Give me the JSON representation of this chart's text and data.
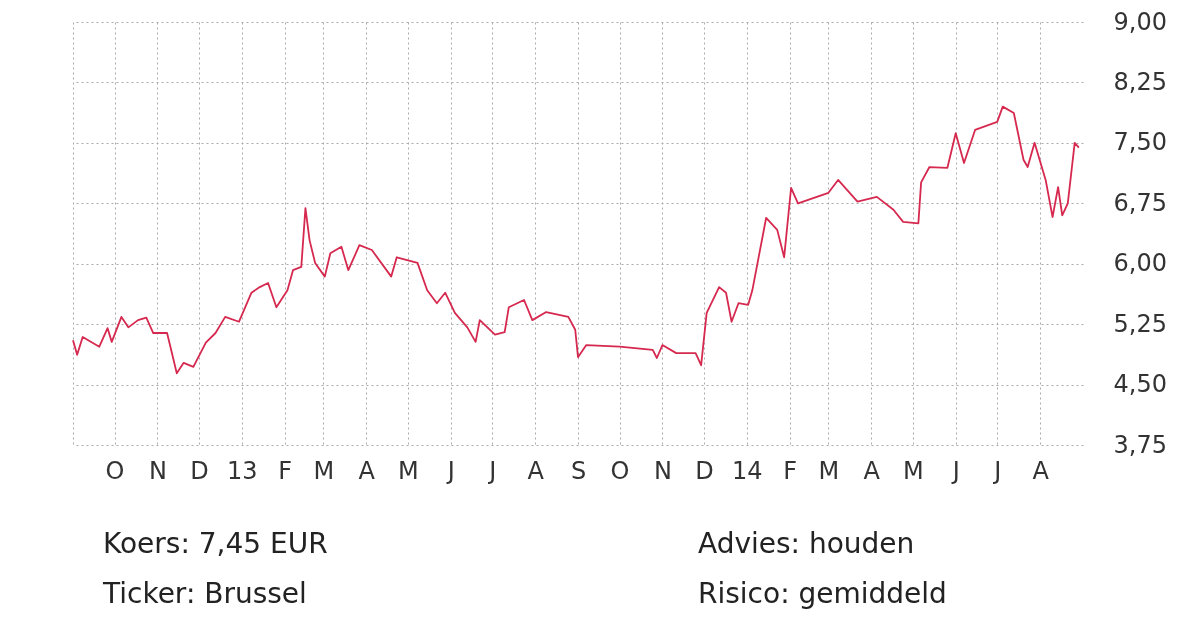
{
  "chart_data": {
    "type": "line",
    "x": [
      "2012-09-01",
      "2012-09-04",
      "2012-09-08",
      "2012-09-20",
      "2012-09-26",
      "2012-09-29",
      "2012-10-06",
      "2012-10-11",
      "2012-10-18",
      "2012-10-24",
      "2012-10-29",
      "2012-11-08",
      "2012-11-15",
      "2012-11-20",
      "2012-11-27",
      "2012-12-06",
      "2012-12-13",
      "2012-12-20",
      "2012-12-30",
      "2013-01-08",
      "2013-01-14",
      "2013-01-20",
      "2013-01-26",
      "2013-02-03",
      "2013-02-07",
      "2013-02-13",
      "2013-02-16",
      "2013-02-19",
      "2013-02-23",
      "2013-03-02",
      "2013-03-06",
      "2013-03-14",
      "2013-03-19",
      "2013-03-27",
      "2013-04-05",
      "2013-04-19",
      "2013-04-23",
      "2013-05-08",
      "2013-05-15",
      "2013-05-22",
      "2013-05-28",
      "2013-06-04",
      "2013-06-13",
      "2013-06-19",
      "2013-06-22",
      "2013-07-03",
      "2013-07-10",
      "2013-07-13",
      "2013-07-24",
      "2013-07-30",
      "2013-08-09",
      "2013-08-25",
      "2013-08-30",
      "2013-09-01",
      "2013-09-07",
      "2013-10-01",
      "2013-10-25",
      "2013-10-28",
      "2013-11-01",
      "2013-11-11",
      "2013-11-25",
      "2013-11-29",
      "2013-12-03",
      "2013-12-12",
      "2013-12-17",
      "2013-12-21",
      "2013-12-26",
      "2014-01-02",
      "2014-01-05",
      "2014-01-15",
      "2014-01-23",
      "2014-01-28",
      "2014-02-02",
      "2014-02-07",
      "2014-03-01",
      "2014-03-08",
      "2014-03-22",
      "2014-04-05",
      "2014-04-17",
      "2014-04-24",
      "2014-05-05",
      "2014-05-07",
      "2014-05-13",
      "2014-05-26",
      "2014-06-01",
      "2014-06-07",
      "2014-06-15",
      "2014-07-01",
      "2014-07-05",
      "2014-07-13",
      "2014-07-20",
      "2014-07-23",
      "2014-07-28",
      "2014-08-05",
      "2014-08-10",
      "2014-08-14",
      "2014-08-17",
      "2014-08-21",
      "2014-08-26",
      "2014-08-29"
    ],
    "series": [
      {
        "color": "#d6294f",
        "values": [
          5.05,
          4.87,
          5.09,
          4.97,
          5.2,
          5.03,
          5.34,
          5.21,
          5.3,
          5.33,
          5.14,
          5.14,
          4.64,
          4.77,
          4.72,
          5.02,
          5.14,
          5.34,
          5.28,
          5.64,
          5.71,
          5.76,
          5.46,
          5.67,
          5.92,
          5.96,
          6.69,
          6.29,
          6.01,
          5.84,
          6.13,
          6.21,
          5.92,
          6.23,
          6.17,
          5.84,
          6.08,
          6.01,
          5.67,
          5.51,
          5.64,
          5.39,
          5.21,
          5.03,
          5.3,
          5.12,
          5.15,
          5.46,
          5.55,
          5.3,
          5.4,
          5.34,
          5.18,
          4.84,
          4.99,
          4.97,
          4.93,
          4.83,
          4.99,
          4.89,
          4.89,
          4.74,
          5.39,
          5.71,
          5.64,
          5.28,
          5.51,
          5.49,
          5.67,
          6.57,
          6.42,
          6.08,
          6.94,
          6.75,
          6.88,
          7.04,
          6.77,
          6.83,
          6.67,
          6.52,
          6.5,
          7.01,
          7.2,
          7.19,
          7.62,
          7.25,
          7.66,
          7.76,
          7.95,
          7.87,
          7.29,
          7.2,
          7.5,
          7.04,
          6.58,
          6.95,
          6.6,
          6.75,
          7.5,
          7.44
        ]
      }
    ],
    "xlim": [
      "2012-09-01",
      "2014-09-01"
    ],
    "xticks": [
      {
        "value": "2012-09-01",
        "label": null
      },
      {
        "value": "2012-10-01",
        "label": "O"
      },
      {
        "value": "2012-11-01",
        "label": "N"
      },
      {
        "value": "2012-12-01",
        "label": "D"
      },
      {
        "value": "2013-01-01",
        "label": "13"
      },
      {
        "value": "2013-02-01",
        "label": "F"
      },
      {
        "value": "2013-03-01",
        "label": "M"
      },
      {
        "value": "2013-04-01",
        "label": "A"
      },
      {
        "value": "2013-05-01",
        "label": "M"
      },
      {
        "value": "2013-06-01",
        "label": "J"
      },
      {
        "value": "2013-07-01",
        "label": "J"
      },
      {
        "value": "2013-08-01",
        "label": "A"
      },
      {
        "value": "2013-09-01",
        "label": "S"
      },
      {
        "value": "2013-10-01",
        "label": "O"
      },
      {
        "value": "2013-11-01",
        "label": "N"
      },
      {
        "value": "2013-12-01",
        "label": "D"
      },
      {
        "value": "2014-01-01",
        "label": "14"
      },
      {
        "value": "2014-02-01",
        "label": "F"
      },
      {
        "value": "2014-03-01",
        "label": "M"
      },
      {
        "value": "2014-04-01",
        "label": "A"
      },
      {
        "value": "2014-05-01",
        "label": "M"
      },
      {
        "value": "2014-06-01",
        "label": "J"
      },
      {
        "value": "2014-07-01",
        "label": "J"
      },
      {
        "value": "2014-08-01",
        "label": "A"
      }
    ],
    "ylim": [
      3.75,
      9.0
    ],
    "yticks": [
      {
        "value": 3.75,
        "label": "3,75"
      },
      {
        "value": 4.5,
        "label": "4,50"
      },
      {
        "value": 5.25,
        "label": "5,25"
      },
      {
        "value": 6.0,
        "label": "6,00"
      },
      {
        "value": 6.75,
        "label": "6,75"
      },
      {
        "value": 7.5,
        "label": "7,50"
      },
      {
        "value": 8.25,
        "label": "8,25"
      },
      {
        "value": 9.0,
        "label": "9,00"
      }
    ],
    "grid": true,
    "line_style": "solid",
    "annotations": [
      "Koers: 7,45 EUR",
      "Ticker: Brussel",
      "Advies: houden",
      "Risico: gemiddeld"
    ]
  }
}
